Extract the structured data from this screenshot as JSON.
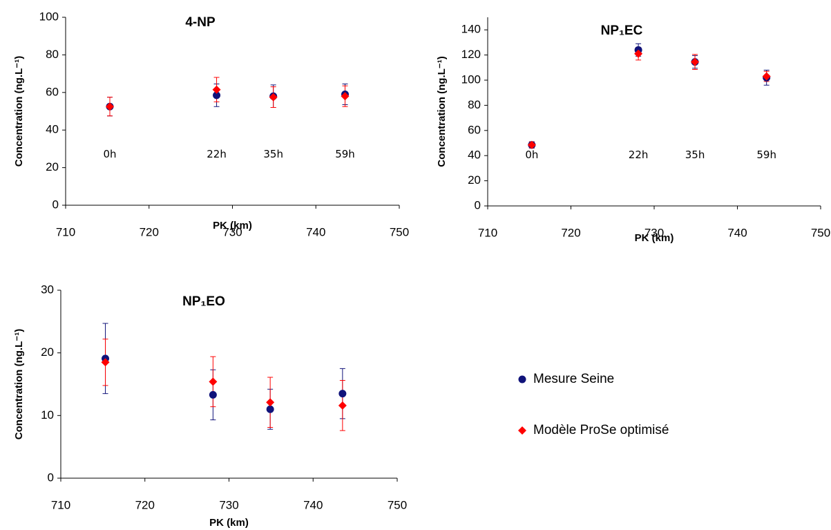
{
  "chart_data": [
    {
      "type": "scatter",
      "title": "4-NP",
      "x_label": "PK (km)",
      "y_label": "Concentration (ng.L⁻¹)",
      "xlim": [
        710,
        750
      ],
      "xticks": [
        710,
        720,
        730,
        740,
        750
      ],
      "ylim": [
        0,
        100
      ],
      "yticks": [
        0,
        20,
        40,
        60,
        80,
        100
      ],
      "annotations": [
        "0h",
        "22h",
        "35h",
        "59h"
      ],
      "series": [
        {
          "color": "#10137a",
          "marker": "circle",
          "x": [
            715.3,
            728.1,
            734.9,
            743.5
          ],
          "values": [
            52.5,
            58.5,
            58,
            59
          ],
          "errors": [
            5,
            6,
            6,
            5.5
          ]
        },
        {
          "color": "#ff0000",
          "marker": "diamond",
          "x": [
            715.3,
            728.1,
            734.9,
            743.5
          ],
          "values": [
            52.5,
            61.5,
            57.5,
            58
          ],
          "errors": [
            5,
            6.5,
            5.5,
            5.5
          ]
        }
      ]
    },
    {
      "type": "scatter",
      "title": "NP₁EC",
      "x_label": "PK (km)",
      "y_label": "Concentration (ng.L⁻¹)",
      "xlim": [
        710,
        750
      ],
      "xticks": [
        710,
        720,
        730,
        740,
        750
      ],
      "ylim": [
        0,
        150
      ],
      "yticks": [
        0,
        20,
        40,
        60,
        80,
        100,
        120,
        140
      ],
      "annotations": [
        "0h",
        "22h",
        "35h",
        "59h"
      ],
      "series": [
        {
          "color": "#10137a",
          "marker": "circle",
          "x": [
            715.3,
            728.1,
            734.9,
            743.5
          ],
          "values": [
            48.5,
            124,
            114.5,
            102
          ],
          "errors": [
            2.5,
            5,
            5,
            6
          ]
        },
        {
          "color": "#ff0000",
          "marker": "diamond",
          "x": [
            715.3,
            728.1,
            734.9,
            743.5
          ],
          "values": [
            48.5,
            121,
            114.5,
            103
          ],
          "errors": [
            2.5,
            5,
            6,
            4
          ]
        }
      ]
    },
    {
      "type": "scatter",
      "title": "NP₁EO",
      "x_label": "PK (km)",
      "y_label": "Concentration (ng.L⁻¹)",
      "xlim": [
        710,
        750
      ],
      "xticks": [
        710,
        720,
        730,
        740,
        750
      ],
      "ylim": [
        0,
        30
      ],
      "yticks": [
        0,
        10,
        20,
        30
      ],
      "series": [
        {
          "color": "#10137a",
          "marker": "circle",
          "x": [
            715.3,
            728.1,
            734.9,
            743.5
          ],
          "values": [
            19.1,
            13.3,
            11,
            13.5
          ],
          "errors": [
            5.6,
            4,
            3.2,
            4
          ]
        },
        {
          "color": "#ff0000",
          "marker": "diamond",
          "x": [
            715.3,
            728.1,
            734.9,
            743.5
          ],
          "values": [
            18.5,
            15.4,
            12.1,
            11.6
          ],
          "errors": [
            3.7,
            4,
            4,
            4
          ]
        }
      ]
    }
  ],
  "legend": [
    {
      "name": "Mesure Seine",
      "color": "#10137a",
      "marker": "circle"
    },
    {
      "name": "Modèle ProSe optimisé",
      "color": "#ff0000",
      "marker": "diamond"
    }
  ]
}
